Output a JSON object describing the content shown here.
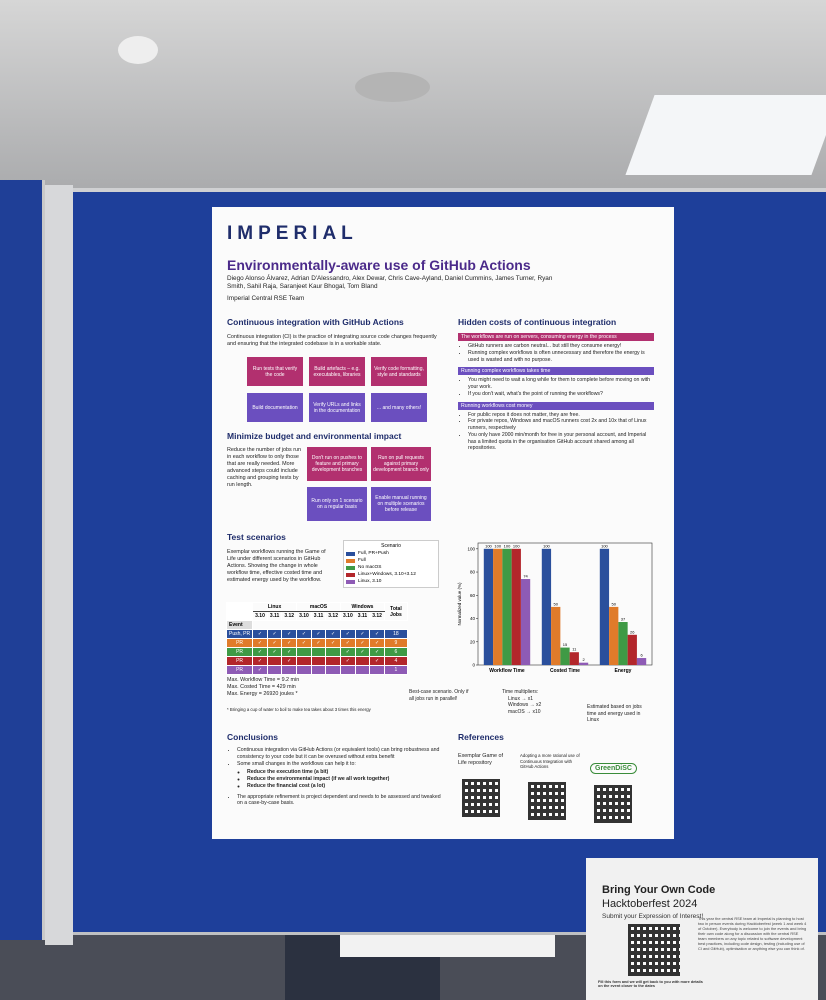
{
  "poster": {
    "logo": "IMPERIAL",
    "title": "Environmentally-aware use of GitHub Actions",
    "authors": "Diego Alonso Álvarez, Adrian D'Alessandro, Alex Dewar, Chris Cave-Ayland, Daniel Cummins, James Turner, Ryan Smith, Sahil Raja, Saranjeet Kaur Bhogal, Tom Bland",
    "team": "Imperial Central RSE Team",
    "ci": {
      "heading": "Continuous integration with GitHub Actions",
      "text": "Continuous integration (CI) is the practice of integrating source code changes frequently and ensuring that the integrated codebase is in a workable state.",
      "boxes": [
        "Run tests that verify the code",
        "Build artefacts – e.g. executables, libraries",
        "Verify code formatting, style and standards",
        "Build documentation",
        "Verify URLs and links in the documentation",
        "... and many others!"
      ]
    },
    "budget": {
      "heading": "Minimize budget and environmental impact",
      "text": "Reduce the number of jobs run in each workflow to only those that are really needed. More advanced steps could include caching and grouping tests by run length.",
      "boxes": [
        "Don't run on pushes to feature and primary development branches",
        "Run on pull requests against primary development branch only",
        "Run only on 1 scenario on a regular basis",
        "Enable manual running on multiple scenarios before release"
      ]
    },
    "hidden": {
      "heading": "Hidden costs of continuous integration",
      "groups": [
        {
          "title": "The workflows are run on servers, consuming energy in the process",
          "bullets": [
            "GitHub runners are carbon neutral... but still they consume energy!",
            "Running complex workflows is often unnecessary and therefore the energy is used is wasted and with no purpose."
          ]
        },
        {
          "title": "Running complex workflows takes time",
          "bullets": [
            "You might need to wait a long while for them to complete before moving on with your work.",
            "If you don't wait, what's the point of running the workflows?"
          ]
        },
        {
          "title": "Running workflows cost money",
          "bullets": [
            "For public repos it does not matter, they are free.",
            "For private repos, Windows and macOS runners cost 2x and 10x that of Linux runners, respectively",
            "You only have 2000 min/month for free in your personal account, and Imperial has a limited quota in the organisation GitHub account shared among all repositories."
          ]
        }
      ]
    },
    "tests": {
      "heading": "Test scenarios",
      "text": "Exemplar workflows running the Game of Life under different scenarios in GitHub Actions. Showing the change in whole workflow time, effective costed time and estimated energy used by the workflow.",
      "table": {
        "groups": [
          "Linux",
          "macOS",
          "Windows"
        ],
        "total": "Total Jobs",
        "event": "Event",
        "versions": [
          "3.10",
          "3.11",
          "3.12",
          "3.10",
          "3.11",
          "3.12",
          "3.10",
          "3.11",
          "3.12"
        ],
        "row_colors": [
          "#2a4f9c",
          "#e07b2a",
          "#3f9a45",
          "#b3262b",
          "#8e5bb5"
        ],
        "rows": [
          [
            "Push, PR",
            "✓",
            "✓",
            "✓",
            "✓",
            "✓",
            "✓",
            "✓",
            "✓",
            "✓",
            "18"
          ],
          [
            "PR",
            "✓",
            "✓",
            "✓",
            "✓",
            "✓",
            "✓",
            "✓",
            "✓",
            "✓",
            "9"
          ],
          [
            "PR",
            "✓",
            "✓",
            "✓",
            null,
            null,
            null,
            "✓",
            "✓",
            "✓",
            "6"
          ],
          [
            "PR",
            "✓",
            null,
            "✓",
            null,
            null,
            null,
            "✓",
            null,
            "✓",
            "4"
          ],
          [
            "PR",
            "✓",
            null,
            null,
            null,
            null,
            null,
            null,
            null,
            null,
            "1"
          ]
        ]
      },
      "stats": [
        "Max. Workflow Time = 9.2 min",
        "Max. Costed Time = 429 min",
        "Max. Energy = 26920 joules *"
      ],
      "footnote": "* Bringing a cup of water to boil to make tea takes about 3 times this energy"
    },
    "conclusions": {
      "heading": "Conclusions",
      "bullets": [
        "Continuous integration via GitHub Actions (or equivalent tools) can bring robustness and consistency to your code but it can be overused without extra benefit",
        "Some small changes in the workflows can help it to:"
      ],
      "sub": [
        "Reduce the execution time (a bit)",
        "Reduce the environmental impact (if we all work together)",
        "Reduce the financial cost (a lot)"
      ],
      "last": "The appropriate refinement is project dependent and needs to be assessed and tweaked on a case-by-case basis."
    },
    "references": {
      "heading": "References",
      "items": [
        "Exemplar Game of Life repository",
        "Adopting a more rational use of Continuous Integration with GitHub Actions",
        "GreenDiSC"
      ]
    }
  },
  "chart_data": {
    "type": "bar",
    "ylabel": "Normalized value (%)",
    "legend_title": "Scenario",
    "categories": [
      "Workflow Time",
      "Costed Time",
      "Energy"
    ],
    "series": [
      {
        "name": "Full, PR+Push",
        "color": "#2a4f9c",
        "values": [
          100,
          100,
          100
        ]
      },
      {
        "name": "Full",
        "color": "#e07b2a",
        "values": [
          100,
          50,
          50
        ]
      },
      {
        "name": "No macOS",
        "color": "#3f9a45",
        "values": [
          100,
          15,
          37
        ]
      },
      {
        "name": "Linux+Windows, 3.10+3.12",
        "color": "#b3262b",
        "values": [
          100,
          11,
          26
        ]
      },
      {
        "name": "Linux, 3.10",
        "color": "#8e5bb5",
        "values": [
          74,
          2,
          6
        ]
      }
    ],
    "ylim": [
      0,
      105
    ],
    "yticks": [
      0,
      20,
      40,
      60,
      80,
      100
    ],
    "annotations": [
      "Best-case scenario. Only if all jobs run in parallel!",
      "Time multipliers:",
      "Linux → x1",
      "Windows → x2",
      "macOS → x10",
      "Estimated based on jobs time and energy used in Linux"
    ]
  },
  "card": {
    "title": "Bring Your Own Code",
    "subtitle": "Hacktoberfest 2024",
    "cta": "Submit your Expression of Interest!",
    "body": "This year the central RSE team at Imperial is planning to host two in person events during Hacktoberfest (week 1 and week 4 of October). Everybody is welcome to join the events and bring their own code along for a discussion with the central RSE team members on any topic related to software development best practices, including code design, testing (including use of CI and GitHub), optimisation or anything else you can think of.",
    "footer": "Fill this form and we will get back to you with more details on the event closer to the dates"
  }
}
